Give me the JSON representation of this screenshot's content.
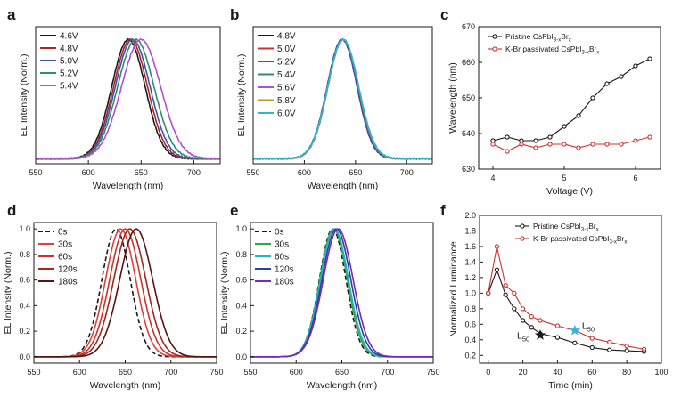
{
  "figure": {
    "panels": [
      {
        "id": "a",
        "letter": "a"
      },
      {
        "id": "b",
        "letter": "b"
      },
      {
        "id": "c",
        "letter": "c"
      },
      {
        "id": "d",
        "letter": "d"
      },
      {
        "id": "e",
        "letter": "e"
      },
      {
        "id": "f",
        "letter": "f"
      }
    ]
  },
  "chart_data": [
    {
      "id": "a",
      "type": "line",
      "xlabel": "Wavelength (nm)",
      "ylabel": "EL Intensity (Norm.)",
      "xlim": [
        550,
        725
      ],
      "ylim": [
        0,
        1.08
      ],
      "xticks": [
        550,
        600,
        650,
        700
      ],
      "yticks": [],
      "legend_position": "top-left",
      "peaks": [
        {
          "name": "4.6V",
          "color": "#1a1a1a",
          "center": 638,
          "sigma": 15.8,
          "dash": false
        },
        {
          "name": "4.8V",
          "color": "#b22222",
          "center": 640,
          "sigma": 16.0,
          "dash": false
        },
        {
          "name": "5.0V",
          "color": "#3a55b4",
          "center": 642,
          "sigma": 16.4,
          "dash": false
        },
        {
          "name": "5.2V",
          "color": "#2f8f6a",
          "center": 645,
          "sigma": 17.2,
          "dash": false
        },
        {
          "name": "5.4V",
          "color": "#b34fd1",
          "center": 650,
          "sigma": 18.5,
          "dash": false
        }
      ]
    },
    {
      "id": "b",
      "type": "line",
      "xlabel": "Wavelength (nm)",
      "ylabel": "EL Intensity (Norm.)",
      "xlim": [
        550,
        725
      ],
      "ylim": [
        0,
        1.08
      ],
      "xticks": [
        550,
        600,
        650,
        700
      ],
      "yticks": [],
      "legend_position": "top-left",
      "peaks": [
        {
          "name": "4.8V",
          "color": "#1a1a1a",
          "center": 637,
          "sigma": 14.5,
          "dash": false
        },
        {
          "name": "5.0V",
          "color": "#d0312d",
          "center": 637,
          "sigma": 14.6,
          "dash": false
        },
        {
          "name": "5.2V",
          "color": "#3a55b4",
          "center": 637,
          "sigma": 14.7,
          "dash": false
        },
        {
          "name": "5.4V",
          "color": "#2f8f6a",
          "center": 638,
          "sigma": 14.8,
          "dash": false
        },
        {
          "name": "5.6V",
          "color": "#b34fd1",
          "center": 638,
          "sigma": 14.9,
          "dash": false
        },
        {
          "name": "5.8V",
          "color": "#c8902a",
          "center": 638,
          "sigma": 15.0,
          "dash": false
        },
        {
          "name": "6.0V",
          "color": "#2bb8c9",
          "center": 638,
          "sigma": 15.1,
          "dash": false
        }
      ]
    },
    {
      "id": "c",
      "type": "line",
      "xlabel": "Voltage (V)",
      "ylabel": "Wavelength (nm)",
      "xlim": [
        3.8,
        6.35
      ],
      "ylim": [
        630,
        670
      ],
      "xticks": [
        4,
        5,
        6
      ],
      "yticks": [
        630,
        640,
        650,
        660,
        670
      ],
      "legend_position": "top-left",
      "series": [
        {
          "name": "Pristine CsPbI3-xBrx",
          "legend_base": "Pristine CsPbI",
          "legend_sub1": "3-x",
          "legend_mid": "Br",
          "legend_sub2": "x",
          "color": "#1a1a1a",
          "x": [
            4.0,
            4.2,
            4.4,
            4.6,
            4.8,
            5.0,
            5.2,
            5.4,
            5.6,
            5.8,
            6.0,
            6.2
          ],
          "y": [
            638,
            639,
            638,
            638,
            639,
            642,
            645,
            650,
            654,
            656,
            659,
            661
          ]
        },
        {
          "name": "K-Br passivated CsPbI3-xBrx",
          "legend_base": "K-Br passivated CsPbI",
          "legend_sub1": "3-x",
          "legend_mid": "Br",
          "legend_sub2": "x",
          "color": "#d0312d",
          "x": [
            4.0,
            4.2,
            4.4,
            4.6,
            4.8,
            5.0,
            5.2,
            5.4,
            5.6,
            5.8,
            6.0,
            6.2
          ],
          "y": [
            637,
            635,
            637,
            636,
            637,
            637,
            636,
            637,
            637,
            637,
            638,
            639
          ]
        }
      ]
    },
    {
      "id": "d",
      "type": "line",
      "xlabel": "Wavelength (nm)",
      "ylabel": "EL Intensity (Norm.)",
      "xlim": [
        550,
        750
      ],
      "ylim": [
        -0.05,
        1.05
      ],
      "xticks": [
        550,
        600,
        650,
        700,
        750
      ],
      "yticks": [
        0.0,
        0.2,
        0.4,
        0.6,
        0.8,
        1.0
      ],
      "legend_position": "top-left",
      "peaks": [
        {
          "name": "0s",
          "color": "#1a1a1a",
          "center": 640,
          "sigma": 15.5,
          "dash": true
        },
        {
          "name": "30s",
          "color": "#e0403a",
          "center": 645,
          "sigma": 16.5,
          "dash": false
        },
        {
          "name": "60s",
          "color": "#c8352f",
          "center": 650,
          "sigma": 17.0,
          "dash": false
        },
        {
          "name": "120s",
          "color": "#a62520",
          "center": 655,
          "sigma": 17.5,
          "dash": false
        },
        {
          "name": "180s",
          "color": "#5a1510",
          "center": 662,
          "sigma": 18.0,
          "dash": false
        }
      ]
    },
    {
      "id": "e",
      "type": "line",
      "xlabel": "Wavelength (nm)",
      "ylabel": "EL Intensity (Norm.)",
      "xlim": [
        550,
        750
      ],
      "ylim": [
        -0.05,
        1.05
      ],
      "xticks": [
        550,
        600,
        650,
        700,
        750
      ],
      "yticks": [
        0.0,
        0.2,
        0.4,
        0.6,
        0.8,
        1.0
      ],
      "legend_position": "top-left",
      "peaks": [
        {
          "name": "0s",
          "color": "#1a1a1a",
          "center": 640,
          "sigma": 14.5,
          "dash": true
        },
        {
          "name": "30s",
          "color": "#2ea84a",
          "center": 641,
          "sigma": 15.0,
          "dash": false
        },
        {
          "name": "60s",
          "color": "#1fb5c4",
          "center": 642,
          "sigma": 15.3,
          "dash": false
        },
        {
          "name": "120s",
          "color": "#2a3fa8",
          "center": 644,
          "sigma": 15.8,
          "dash": false
        },
        {
          "name": "180s",
          "color": "#7a2ab0",
          "center": 646,
          "sigma": 16.3,
          "dash": false
        }
      ]
    },
    {
      "id": "f",
      "type": "line",
      "xlabel": "Time (min)",
      "ylabel": "Normalized Luminance",
      "xlim": [
        -5,
        100
      ],
      "ylim": [
        0.1,
        2.0
      ],
      "xticks": [
        0,
        20,
        40,
        60,
        80,
        100
      ],
      "yticks": [
        0.2,
        0.4,
        0.6,
        0.8,
        1.0,
        1.2,
        1.4,
        1.6,
        1.8,
        2.0
      ],
      "legend_position": "top-right",
      "series": [
        {
          "name": "Pristine CsPbI3-xBrx",
          "legend_base": "Pristine CsPbI",
          "legend_sub1": "3-x",
          "legend_mid": "Br",
          "legend_sub2": "x",
          "color": "#1a1a1a",
          "x": [
            0,
            5,
            10,
            15,
            20,
            25,
            30,
            40,
            50,
            60,
            70,
            80,
            90
          ],
          "y": [
            1.0,
            1.3,
            0.98,
            0.8,
            0.65,
            0.56,
            0.48,
            0.43,
            0.36,
            0.3,
            0.27,
            0.26,
            0.25
          ]
        },
        {
          "name": "K-Br passivated CsPbI3-xBrx",
          "legend_base": "K-Br passivated CsPbI",
          "legend_sub1": "3-x",
          "legend_mid": "Br",
          "legend_sub2": "x",
          "color": "#d0312d",
          "x": [
            0,
            5,
            10,
            15,
            20,
            25,
            30,
            40,
            50,
            60,
            70,
            80,
            90
          ],
          "y": [
            1.0,
            1.6,
            1.1,
            1.0,
            0.8,
            0.7,
            0.65,
            0.58,
            0.52,
            0.42,
            0.37,
            0.32,
            0.28
          ]
        }
      ],
      "annotations": [
        {
          "text": "L",
          "sub": "50",
          "x": 30,
          "y": 0.46,
          "color": "#1a1a1a",
          "label_side": "left"
        },
        {
          "text": "L",
          "sub": "50",
          "x": 50,
          "y": 0.52,
          "color": "#35b3e6",
          "label_side": "right"
        }
      ]
    }
  ]
}
